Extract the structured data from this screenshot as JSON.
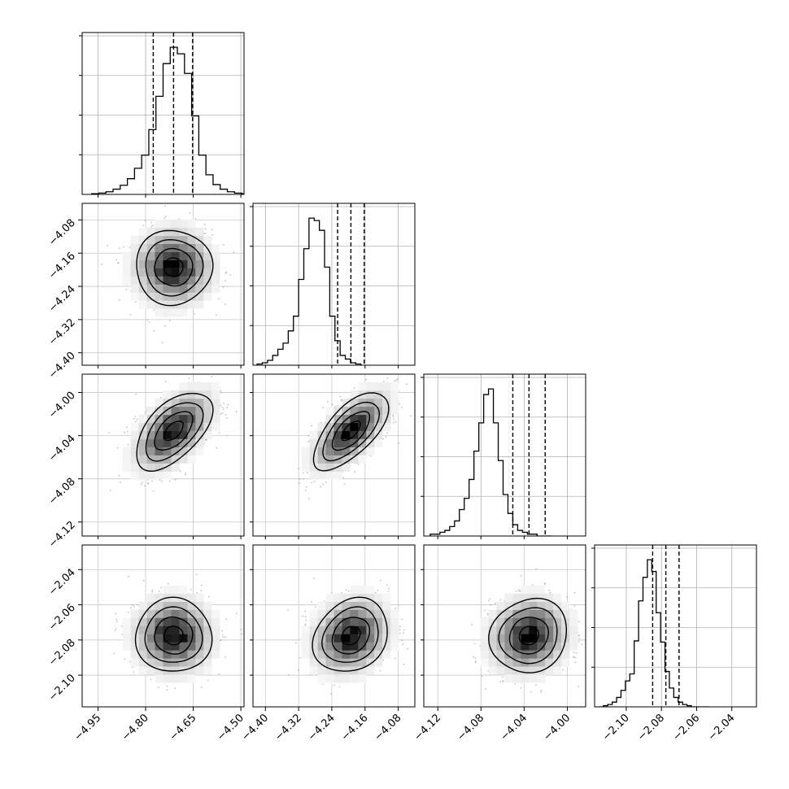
{
  "chart_data": {
    "type": "corner",
    "grid": true,
    "parameters": [
      {
        "range": [
          -5.0,
          -4.49
        ],
        "ticks": [
          -4.95,
          -4.8,
          -4.65,
          -4.5
        ],
        "tick_labels": [
          "−4.95",
          "−4.80",
          "−4.65",
          "−4.50"
        ]
      },
      {
        "range": [
          -4.43,
          -4.04
        ],
        "ticks": [
          -4.4,
          -4.32,
          -4.24,
          -4.16,
          -4.08
        ],
        "tick_labels": [
          "−4.40",
          "−4.32",
          "−4.24",
          "−4.16",
          "−4.08"
        ]
      },
      {
        "range": [
          -4.133,
          -3.983
        ],
        "ticks": [
          -4.12,
          -4.08,
          -4.04,
          -4.0
        ],
        "tick_labels": [
          "−4.12",
          "−4.08",
          "−4.04",
          "−4.00"
        ]
      },
      {
        "range": [
          -2.118,
          -2.026
        ],
        "ticks": [
          -2.1,
          -2.08,
          -2.06,
          -2.04
        ],
        "tick_labels": [
          "−2.10",
          "−2.08",
          "−2.06",
          "−2.04"
        ]
      }
    ],
    "marginals": [
      {
        "quantiles": [
          -4.776,
          -4.712,
          -4.652
        ],
        "bins_start": -4.97,
        "bin_width": 0.0225,
        "counts": [
          1,
          2,
          4,
          8,
          14,
          24,
          40,
          60,
          99,
          150,
          200,
          225,
          215,
          185,
          120,
          60,
          30,
          15,
          8,
          4,
          2,
          1
        ]
      },
      {
        "quantiles": [
          -4.226,
          -4.194,
          -4.162
        ],
        "bins_start": -4.42,
        "bin_width": 0.0125,
        "counts": [
          1,
          2,
          4,
          8,
          13,
          18,
          28,
          40,
          70,
          95,
          120,
          118,
          110,
          80,
          40,
          20,
          8,
          5,
          2,
          1
        ]
      },
      {
        "quantiles": [
          -4.0505,
          -4.0355,
          -4.0205
        ],
        "bins_start": -4.127,
        "bin_width": 0.0045,
        "counts": [
          1,
          1,
          2,
          3,
          5,
          8,
          14,
          20,
          30,
          45,
          60,
          75,
          78,
          60,
          40,
          22,
          12,
          6,
          3,
          2,
          1,
          1,
          0,
          0,
          0
        ]
      },
      {
        "quantiles": [
          -2.085,
          -2.0775,
          -2.07
        ],
        "bins_start": -2.1155,
        "bin_width": 0.0025,
        "counts": [
          0,
          1,
          2,
          4,
          8,
          14,
          22,
          28,
          56,
          90,
          110,
          125,
          115,
          80,
          55,
          30,
          16,
          8,
          4,
          2,
          1,
          0,
          0,
          0,
          0
        ]
      }
    ],
    "pairs": [
      {
        "x": 0,
        "y": 1,
        "mean": [
          -4.712,
          -4.194
        ],
        "sd": [
          0.06,
          0.045
        ],
        "corr": 0.0
      },
      {
        "x": 0,
        "y": 2,
        "mean": [
          -4.712,
          -4.0355
        ],
        "sd": [
          0.06,
          0.018
        ],
        "corr": 0.55
      },
      {
        "x": 1,
        "y": 2,
        "mean": [
          -4.194,
          -4.0355
        ],
        "sd": [
          0.045,
          0.018
        ],
        "corr": 0.65
      },
      {
        "x": 0,
        "y": 3,
        "mean": [
          -4.712,
          -2.0775
        ],
        "sd": [
          0.06,
          0.0105
        ],
        "corr": 0.0
      },
      {
        "x": 1,
        "y": 3,
        "mean": [
          -4.194,
          -2.0775
        ],
        "sd": [
          0.045,
          0.0105
        ],
        "corr": 0.2
      },
      {
        "x": 2,
        "y": 3,
        "mean": [
          -4.0355,
          -2.0775
        ],
        "sd": [
          0.018,
          0.0105
        ],
        "corr": 0.1
      }
    ],
    "contour_levels_sigma": [
      0.5,
      1.0,
      1.5,
      2.0
    ]
  }
}
